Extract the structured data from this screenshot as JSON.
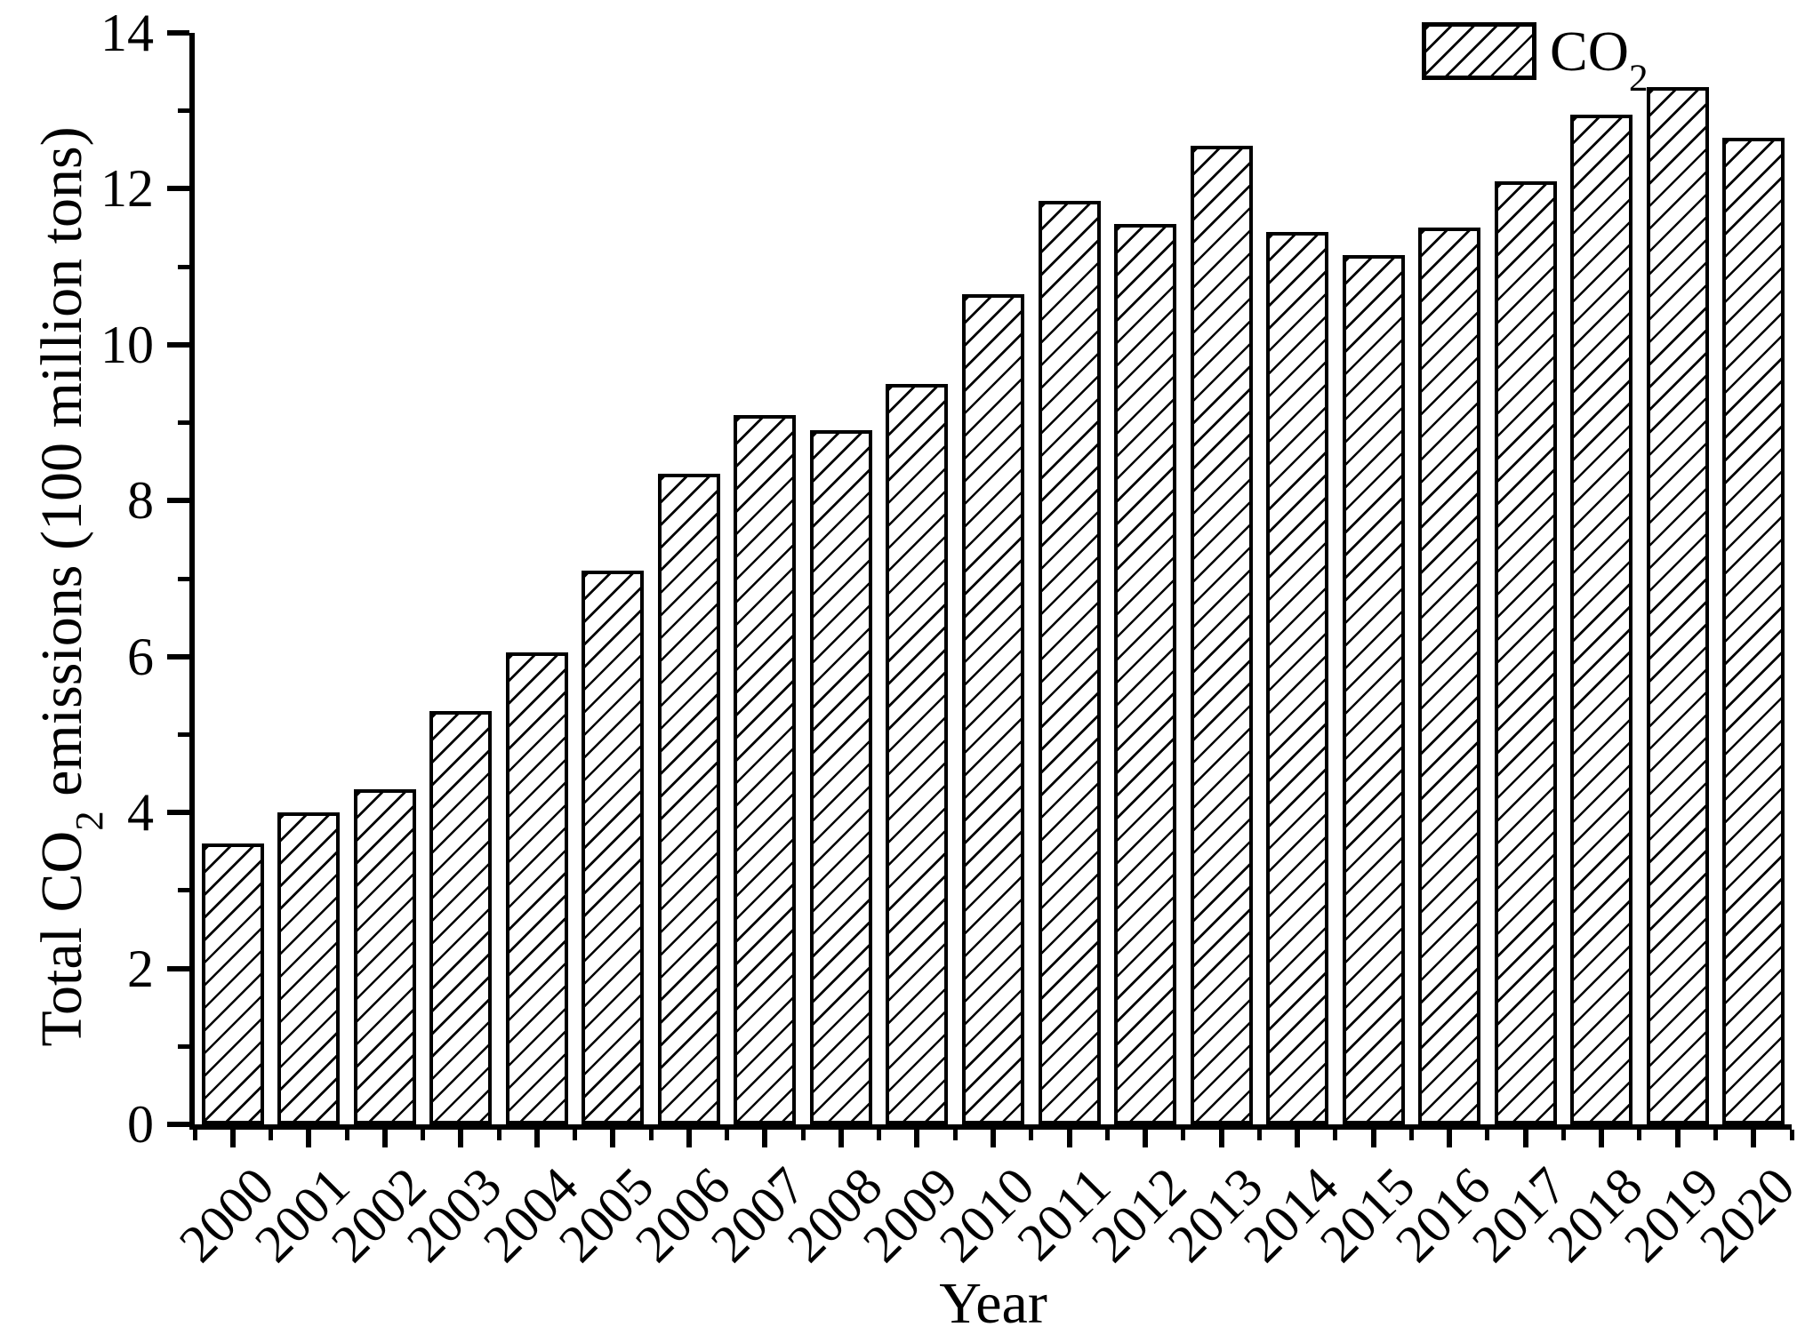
{
  "figure": {
    "background_color": "#ffffff",
    "ink_color": "#000000"
  },
  "chart_data": {
    "type": "bar",
    "title": "",
    "xlabel": "Year",
    "ylabel": "Total CO2 emissions (100 million tons)",
    "ylabel_parts": {
      "pre": "Total CO",
      "sub": "2",
      "post": " emissions (100 million tons)"
    },
    "categories": [
      "2000",
      "2001",
      "2002",
      "2003",
      "2004",
      "2005",
      "2006",
      "2007",
      "2008",
      "2009",
      "2010",
      "2011",
      "2012",
      "2013",
      "2014",
      "2015",
      "2016",
      "2017",
      "2018",
      "2019",
      "2020"
    ],
    "values": [
      3.6,
      4.0,
      4.3,
      5.3,
      6.05,
      7.1,
      8.35,
      9.1,
      8.9,
      9.5,
      10.65,
      11.85,
      11.55,
      12.55,
      11.45,
      11.15,
      11.5,
      12.1,
      12.95,
      13.3,
      12.65
    ],
    "ylim": [
      0,
      14
    ],
    "y_major_ticks": [
      0,
      2,
      4,
      6,
      8,
      10,
      12,
      14
    ],
    "y_minor_ticks": [
      1,
      3,
      5,
      7,
      9,
      11,
      13
    ],
    "grid": "off",
    "bar_style": {
      "fill": "diagonal-hatch",
      "hatch_direction": "/",
      "stroke": "#000000",
      "fill_background": "#ffffff"
    },
    "legend": {
      "position": "top-right",
      "entries": [
        {
          "label": "CO2",
          "label_pre": "CO",
          "label_sub": "2",
          "swatch": "diagonal-hatch"
        }
      ]
    }
  }
}
